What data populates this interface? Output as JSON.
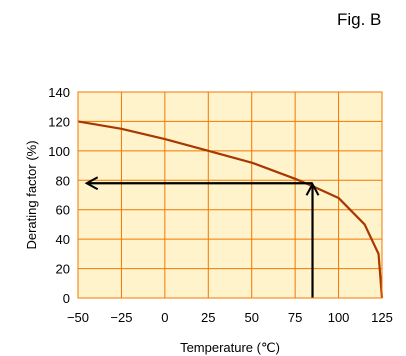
{
  "figure_label": "Fig. B",
  "colors": {
    "plot_background": "#fff3cc",
    "grid": "#f07800",
    "curve": "#a83800",
    "arrow": "#000000"
  },
  "chart_data": {
    "type": "line",
    "title": "",
    "xlabel": "Temperature (℃)",
    "ylabel": "Derating factor (%)",
    "xlim": [
      -50,
      125
    ],
    "ylim": [
      0,
      140
    ],
    "xticks": [
      -50,
      -25,
      0,
      25,
      50,
      75,
      100,
      125
    ],
    "yticks": [
      0,
      20,
      40,
      60,
      80,
      100,
      120,
      140
    ],
    "grid": true,
    "series": [
      {
        "x": [
          -50,
          -25,
          0,
          25,
          50,
          75,
          85,
          100,
          115,
          123,
          125
        ],
        "y": [
          120,
          115,
          108,
          100,
          92,
          81,
          76,
          68,
          50,
          30,
          0
        ]
      }
    ],
    "annotations": [
      {
        "type": "arrow-path",
        "description": "reading arrows",
        "points": [
          [
            85,
            0
          ],
          [
            85,
            78
          ],
          [
            -45,
            78
          ]
        ]
      }
    ]
  }
}
